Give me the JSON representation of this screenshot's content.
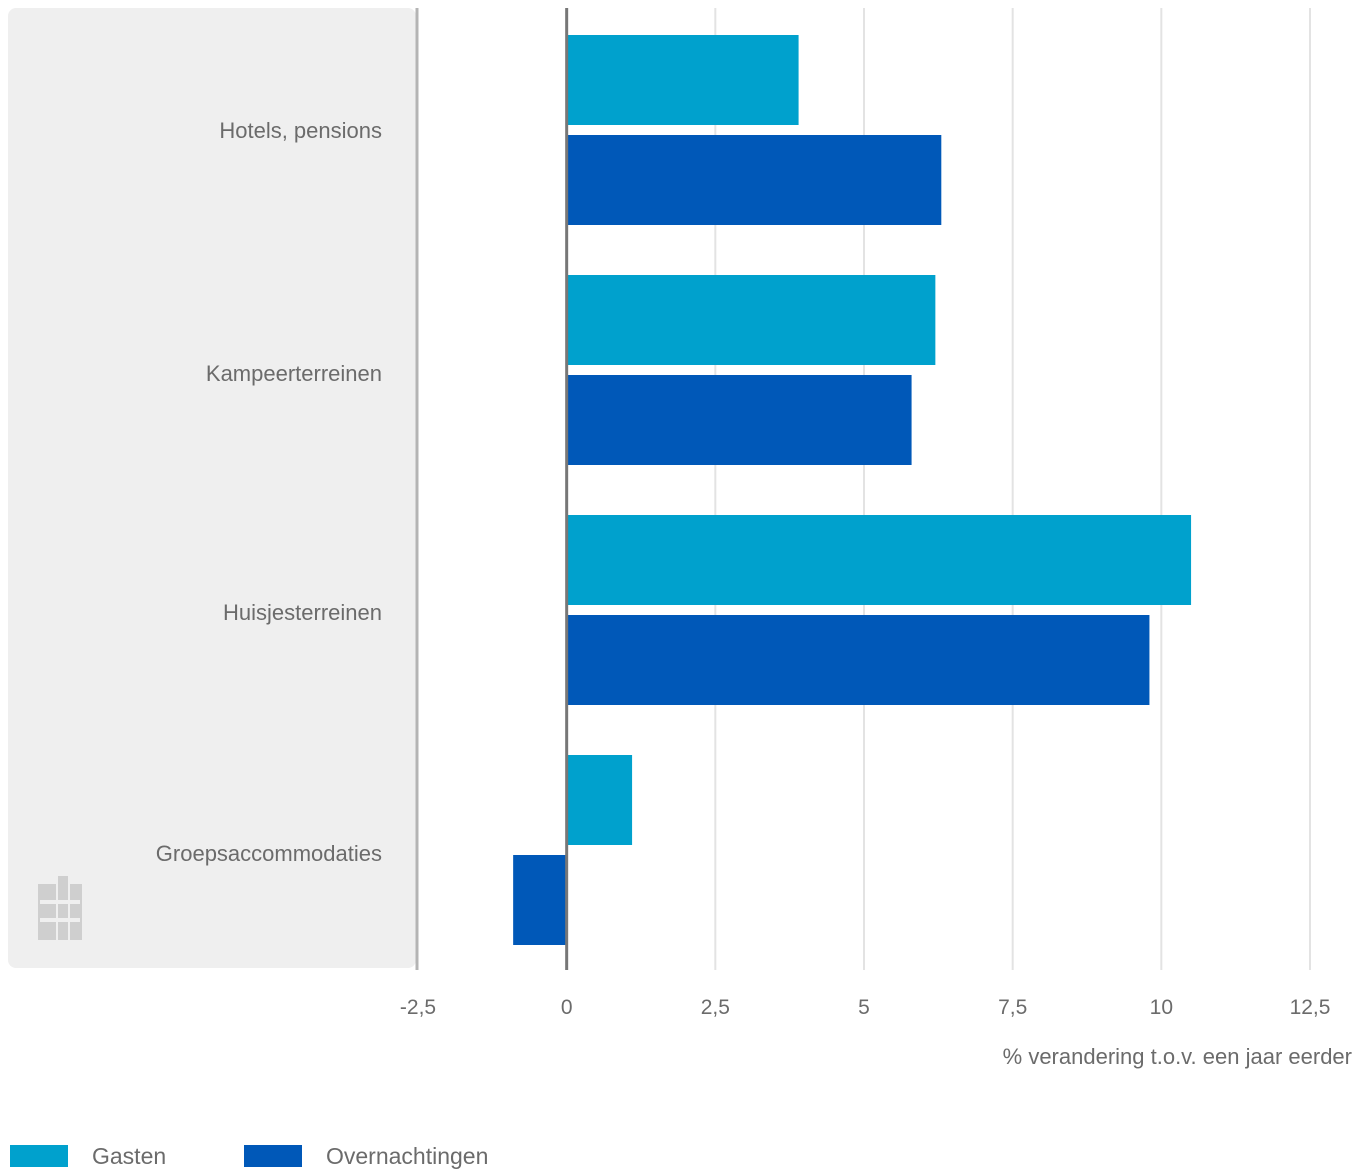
{
  "chart_data": {
    "type": "bar",
    "orientation": "horizontal",
    "categories": [
      "Hotels, pensions",
      "Kampeerterreinen",
      "Huisjesterreinen",
      "Groepsaccommodaties"
    ],
    "series": [
      {
        "name": "Gasten",
        "color": "#00a1cd",
        "values": [
          3.9,
          6.2,
          10.5,
          1.1
        ]
      },
      {
        "name": "Overnachtingen",
        "color": "#0058b8",
        "values": [
          6.3,
          5.8,
          9.8,
          -0.9
        ]
      }
    ],
    "xlabel": "% verandering t.o.v. een jaar eerder",
    "xlim": [
      -2.5,
      12.5
    ],
    "xticks": [
      -2.5,
      0,
      2.5,
      5,
      7.5,
      10,
      12.5
    ],
    "xtick_labels": [
      "-2,5",
      "0",
      "2,5",
      "5",
      "7,5",
      "10",
      "12,5"
    ],
    "grid": true,
    "legend": "bottom-left"
  },
  "colors": {
    "panel": "#efefef",
    "panel_border": "#b4b4b4",
    "grid": "#e3e3e3",
    "zero_line": "#777777"
  },
  "icons": {
    "logo": "cbs-logo-icon"
  }
}
